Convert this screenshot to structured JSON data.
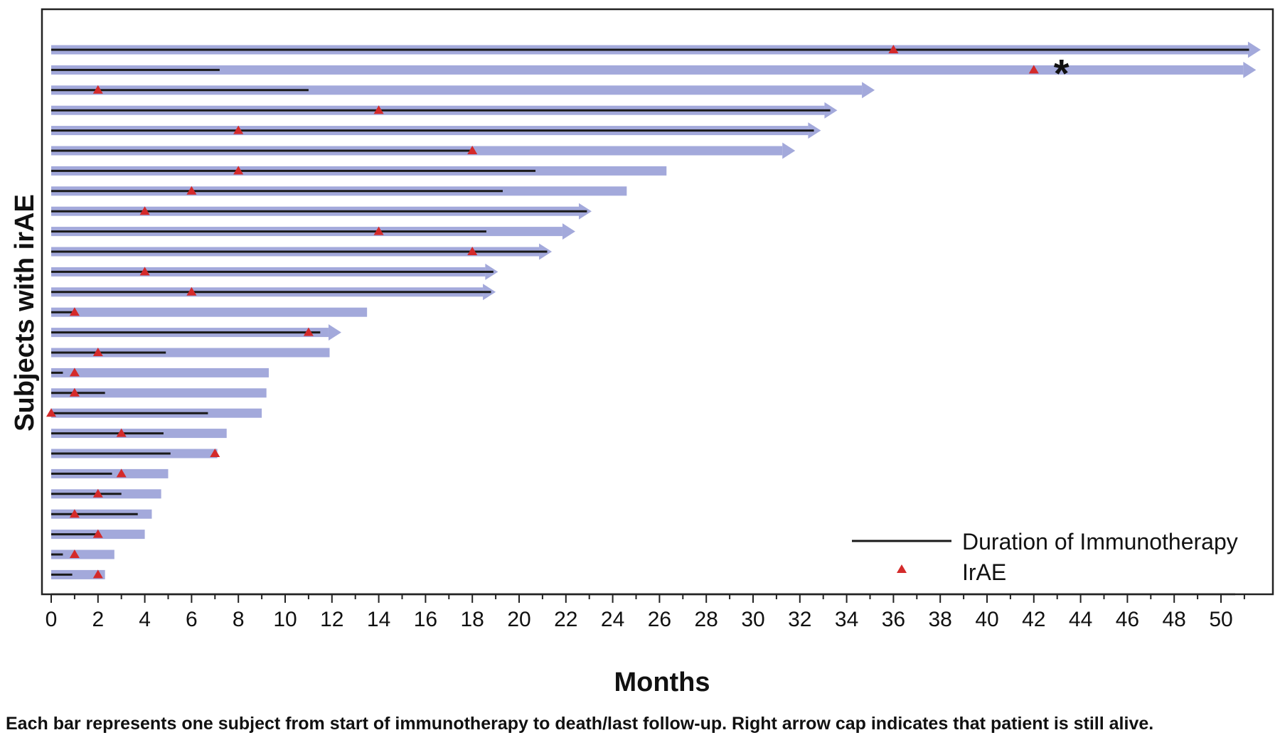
{
  "chart_data": {
    "type": "swimmer",
    "title": "",
    "xlabel": "Months",
    "ylabel": "Subjects with irAE",
    "xlim": [
      0,
      52
    ],
    "x_ticks": [
      0,
      2,
      4,
      6,
      8,
      10,
      12,
      14,
      16,
      18,
      20,
      22,
      24,
      26,
      28,
      30,
      32,
      34,
      36,
      38,
      40,
      42,
      44,
      46,
      48,
      50
    ],
    "legend": {
      "position": "bottom-right",
      "items": [
        {
          "label": "Duration of Immunotherapy",
          "symbol": "line"
        },
        {
          "label": "IrAE",
          "symbol": "triangle"
        }
      ]
    },
    "annotation": "*",
    "annotation_subject": 2,
    "footnote": "Each bar represents one subject from start of immunotherapy to death/last follow-up. Right arrow cap indicates that patient is still alive.",
    "subjects": [
      {
        "id": 1,
        "follow_up": 51.7,
        "therapy": 51.2,
        "irae": 36,
        "alive": true
      },
      {
        "id": 2,
        "follow_up": 51.5,
        "therapy": 7.2,
        "irae": 42,
        "alive": true
      },
      {
        "id": 3,
        "follow_up": 35.2,
        "therapy": 11.0,
        "irae": 2,
        "alive": true
      },
      {
        "id": 4,
        "follow_up": 33.6,
        "therapy": 33.3,
        "irae": 14,
        "alive": true
      },
      {
        "id": 5,
        "follow_up": 32.9,
        "therapy": 32.6,
        "irae": 8,
        "alive": true
      },
      {
        "id": 6,
        "follow_up": 31.8,
        "therapy": 18.0,
        "irae": 18,
        "alive": true
      },
      {
        "id": 7,
        "follow_up": 26.3,
        "therapy": 20.7,
        "irae": 8,
        "alive": false
      },
      {
        "id": 8,
        "follow_up": 24.6,
        "therapy": 19.3,
        "irae": 6,
        "alive": false
      },
      {
        "id": 9,
        "follow_up": 23.1,
        "therapy": 22.9,
        "irae": 4,
        "alive": true
      },
      {
        "id": 10,
        "follow_up": 22.4,
        "therapy": 18.6,
        "irae": 14,
        "alive": true
      },
      {
        "id": 11,
        "follow_up": 21.4,
        "therapy": 21.2,
        "irae": 18,
        "alive": true
      },
      {
        "id": 12,
        "follow_up": 19.1,
        "therapy": 18.9,
        "irae": 4,
        "alive": true
      },
      {
        "id": 13,
        "follow_up": 19.0,
        "therapy": 18.8,
        "irae": 6,
        "alive": true
      },
      {
        "id": 14,
        "follow_up": 13.5,
        "therapy": 1.0,
        "irae": 1,
        "alive": false
      },
      {
        "id": 15,
        "follow_up": 12.4,
        "therapy": 11.5,
        "irae": 11,
        "alive": true
      },
      {
        "id": 16,
        "follow_up": 11.9,
        "therapy": 4.9,
        "irae": 2,
        "alive": false
      },
      {
        "id": 17,
        "follow_up": 9.3,
        "therapy": 0.5,
        "irae": 1,
        "alive": false
      },
      {
        "id": 18,
        "follow_up": 9.2,
        "therapy": 2.3,
        "irae": 1,
        "alive": false
      },
      {
        "id": 19,
        "follow_up": 9.0,
        "therapy": 6.7,
        "irae": 0,
        "alive": false
      },
      {
        "id": 20,
        "follow_up": 7.5,
        "therapy": 4.8,
        "irae": 3,
        "alive": false
      },
      {
        "id": 21,
        "follow_up": 7.1,
        "therapy": 5.1,
        "irae": 7,
        "alive": false
      },
      {
        "id": 22,
        "follow_up": 5.0,
        "therapy": 2.6,
        "irae": 3,
        "alive": false
      },
      {
        "id": 23,
        "follow_up": 4.7,
        "therapy": 3.0,
        "irae": 2,
        "alive": false
      },
      {
        "id": 24,
        "follow_up": 4.3,
        "therapy": 3.7,
        "irae": 1,
        "alive": false
      },
      {
        "id": 25,
        "follow_up": 4.0,
        "therapy": 2.0,
        "irae": 2,
        "alive": false
      },
      {
        "id": 26,
        "follow_up": 2.7,
        "therapy": 0.5,
        "irae": 1,
        "alive": false
      },
      {
        "id": 27,
        "follow_up": 2.3,
        "therapy": 0.9,
        "irae": 2,
        "alive": false
      }
    ],
    "colors": {
      "bar": "#a3a9db",
      "therapy_line": "#1a1a1a",
      "irae_marker": "#d42a2a",
      "frame": "#222222"
    }
  }
}
